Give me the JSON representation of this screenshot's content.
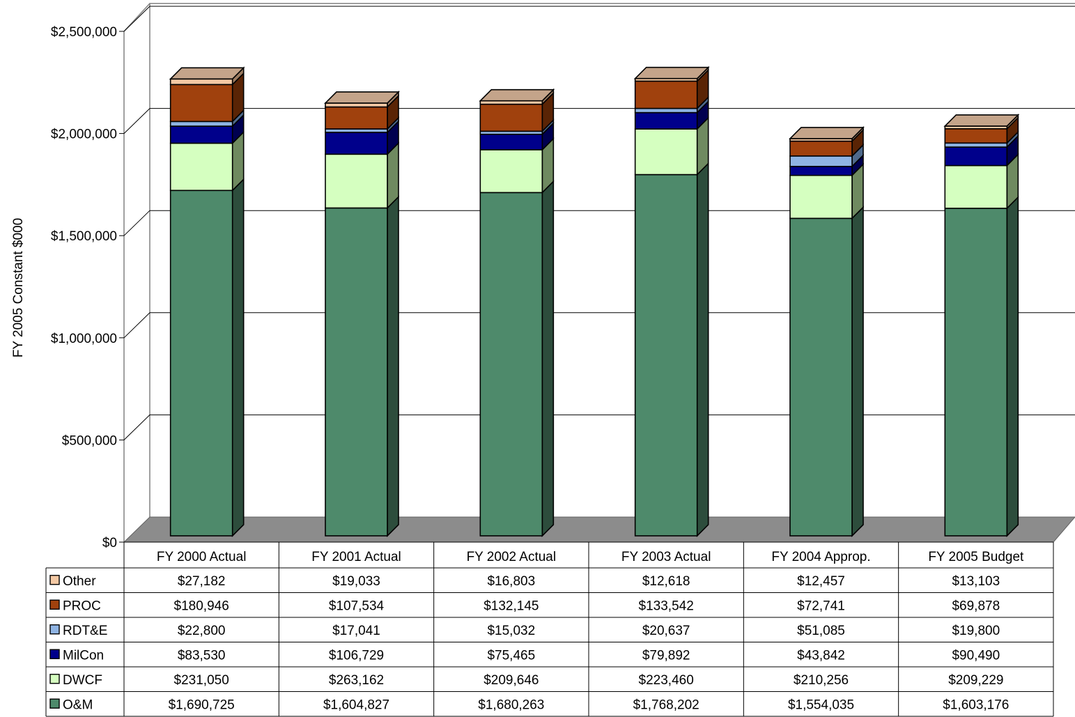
{
  "chart_data": {
    "type": "bar",
    "stacked": true,
    "three_d": true,
    "ylabel": "FY 2005 Constant $000",
    "ylim": [
      0,
      2500000
    ],
    "yticks": [
      0,
      500000,
      1000000,
      1500000,
      2000000,
      2500000
    ],
    "ytick_labels": [
      "$0",
      "$500,000",
      "$1,000,000",
      "$1,500,000",
      "$2,000,000",
      "$2,500,000"
    ],
    "grid": true,
    "legend": "data table rows (left)",
    "categories": [
      "FY 2000 Actual",
      "FY 2001 Actual",
      "FY 2002 Actual",
      "FY 2003 Actual",
      "FY 2004 Approp.",
      "FY 2005 Budget"
    ],
    "series": [
      {
        "name": "O&M",
        "color": "#4e8a6b",
        "side_color": "#2d4d3c",
        "values": [
          1690725,
          1604827,
          1680263,
          1768202,
          1554035,
          1603176
        ],
        "labels": [
          "$1,690,725",
          "$1,604,827",
          "$1,680,263",
          "$1,768,202",
          "$1,554,035",
          "$1,603,176"
        ]
      },
      {
        "name": "DWCF",
        "color": "#d5ffc0",
        "side_color": "#6f8a60",
        "values": [
          231050,
          263162,
          209646,
          223460,
          210256,
          209229
        ],
        "labels": [
          "$231,050",
          "$263,162",
          "$209,646",
          "$223,460",
          "$210,256",
          "$209,229"
        ]
      },
      {
        "name": "MilCon",
        "color": "#00008b",
        "side_color": "#000050",
        "values": [
          83530,
          106729,
          75465,
          79892,
          43842,
          90490
        ],
        "labels": [
          "$83,530",
          "$106,729",
          "$75,465",
          "$79,892",
          "$43,842",
          "$90,490"
        ]
      },
      {
        "name": "RDT&E",
        "color": "#8fb4e3",
        "side_color": "#4f6a8c",
        "values": [
          22800,
          17041,
          15032,
          20637,
          51085,
          19800
        ],
        "labels": [
          "$22,800",
          "$17,041",
          "$15,032",
          "$20,637",
          "$51,085",
          "$19,800"
        ]
      },
      {
        "name": "PROC",
        "color": "#a0410d",
        "side_color": "#5a2405",
        "values": [
          180946,
          107534,
          132145,
          133542,
          72741,
          69878
        ],
        "labels": [
          "$180,946",
          "$107,534",
          "$132,145",
          "$133,542",
          "$72,741",
          "$69,878"
        ]
      },
      {
        "name": "Other",
        "color": "#f4c9a4",
        "side_color": "#9a7a60",
        "values": [
          27182,
          19033,
          16803,
          12618,
          12457,
          13103
        ],
        "labels": [
          "$27,182",
          "$19,033",
          "$16,803",
          "$12,618",
          "$12,457",
          "$13,103"
        ]
      }
    ],
    "top_cap_color": "#c4a48a",
    "floor_color": "#8c8c8c"
  }
}
